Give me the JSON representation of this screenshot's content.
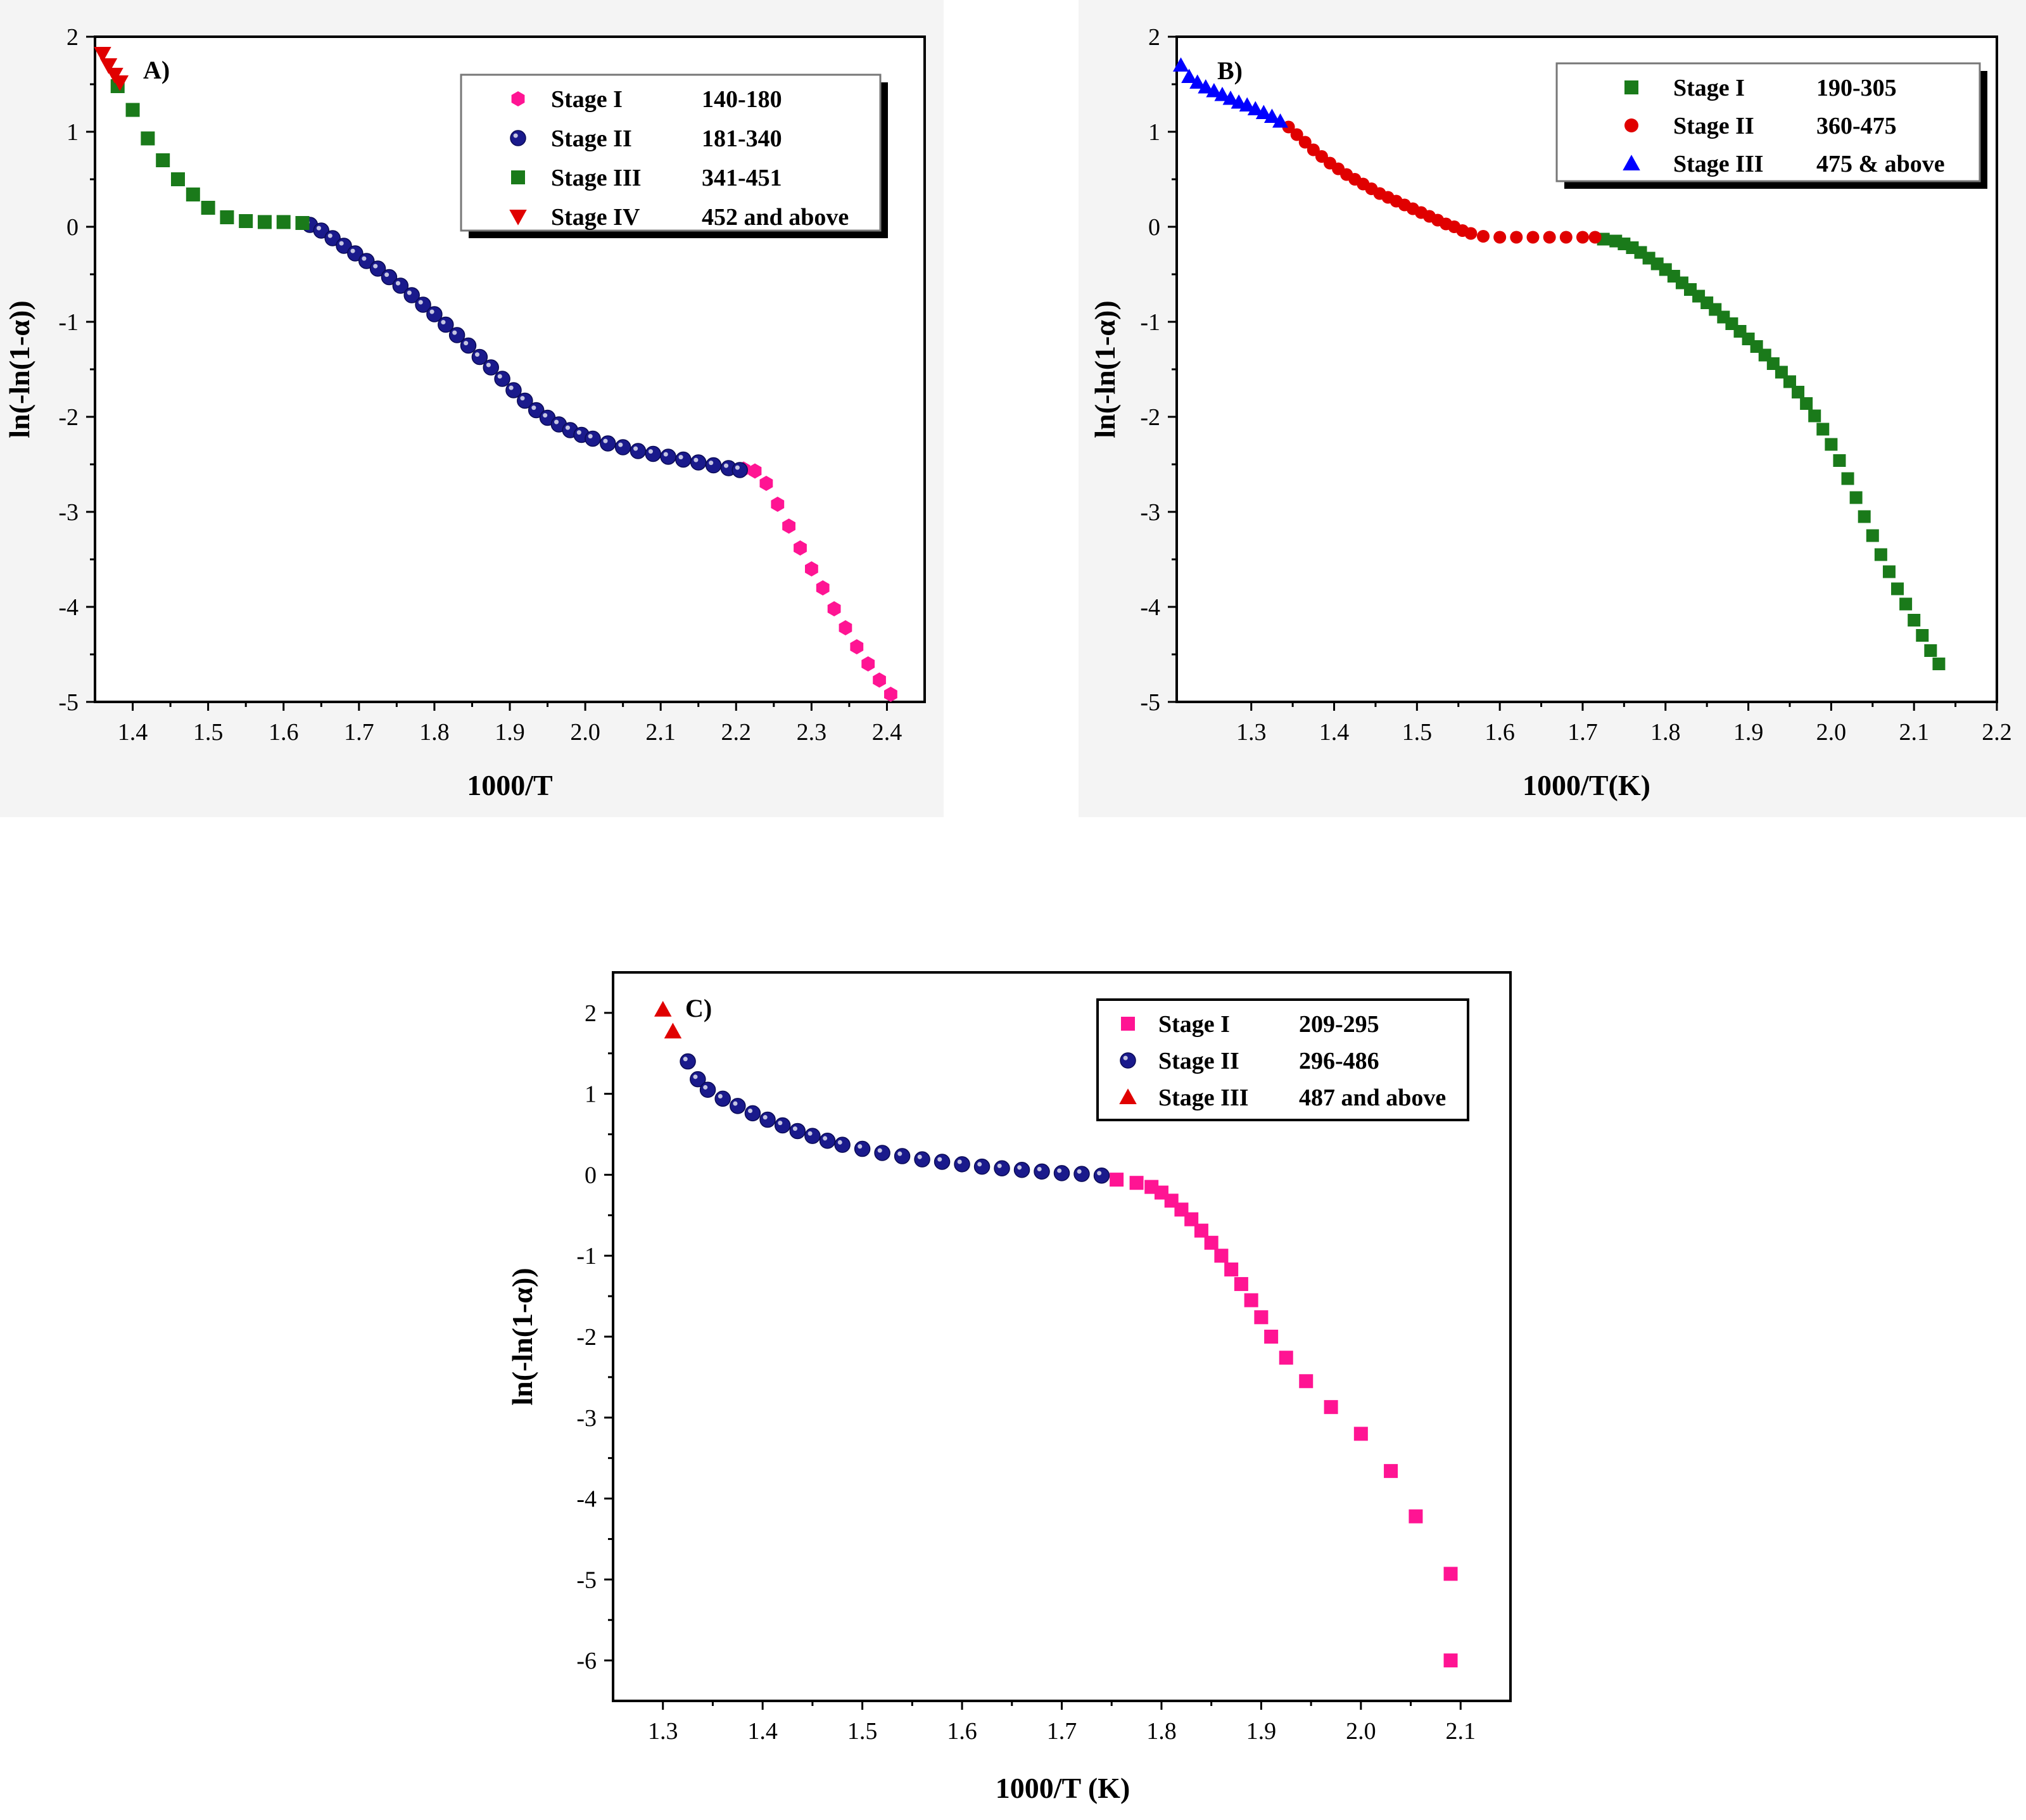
{
  "chart_data": [
    {
      "type": "scatter",
      "panel_label": "A)",
      "xlabel": "1000/T",
      "ylabel": "ln(-ln(1-α))",
      "xlim": [
        1.35,
        2.45
      ],
      "ylim": [
        -5,
        2
      ],
      "xticks": [
        1.4,
        1.5,
        1.6,
        1.7,
        1.8,
        1.9,
        2.0,
        2.1,
        2.2,
        2.3,
        2.4
      ],
      "xtick_labels": [
        "1.4",
        "1.5",
        "1.6",
        "1.7",
        "1.8",
        "1.9",
        "2.0",
        "2.1",
        "2.2",
        "2.3",
        "2.4"
      ],
      "yticks": [
        2,
        1,
        0,
        -1,
        -2,
        -3,
        -4,
        -5
      ],
      "ytick_labels": [
        "2",
        "1",
        "0",
        "-1",
        "-2",
        "-3",
        "-4",
        "-5"
      ],
      "legend": {
        "placement": "top-right",
        "style": "shadow"
      },
      "series": [
        {
          "name": "Stage I",
          "range": "140-180",
          "marker": "hexagon",
          "color": "#ff1493",
          "points": [
            [
              2.21,
              -2.55
            ],
            [
              2.225,
              -2.57
            ],
            [
              2.24,
              -2.7
            ],
            [
              2.255,
              -2.92
            ],
            [
              2.27,
              -3.15
            ],
            [
              2.285,
              -3.38
            ],
            [
              2.3,
              -3.6
            ],
            [
              2.315,
              -3.8
            ],
            [
              2.33,
              -4.02
            ],
            [
              2.345,
              -4.22
            ],
            [
              2.36,
              -4.42
            ],
            [
              2.375,
              -4.6
            ],
            [
              2.39,
              -4.77
            ],
            [
              2.405,
              -4.92
            ]
          ]
        },
        {
          "name": "Stage II",
          "range": "181-340",
          "marker": "sphere",
          "color": "#1a1a8c",
          "points": [
            [
              1.635,
              0.02
            ],
            [
              1.65,
              -0.04
            ],
            [
              1.665,
              -0.12
            ],
            [
              1.68,
              -0.2
            ],
            [
              1.695,
              -0.28
            ],
            [
              1.71,
              -0.36
            ],
            [
              1.725,
              -0.44
            ],
            [
              1.74,
              -0.53
            ],
            [
              1.755,
              -0.62
            ],
            [
              1.77,
              -0.72
            ],
            [
              1.785,
              -0.82
            ],
            [
              1.8,
              -0.92
            ],
            [
              1.815,
              -1.03
            ],
            [
              1.83,
              -1.14
            ],
            [
              1.845,
              -1.25
            ],
            [
              1.86,
              -1.37
            ],
            [
              1.875,
              -1.48
            ],
            [
              1.89,
              -1.6
            ],
            [
              1.905,
              -1.72
            ],
            [
              1.92,
              -1.83
            ],
            [
              1.935,
              -1.93
            ],
            [
              1.95,
              -2.01
            ],
            [
              1.965,
              -2.08
            ],
            [
              1.98,
              -2.14
            ],
            [
              1.995,
              -2.19
            ],
            [
              2.01,
              -2.23
            ],
            [
              2.03,
              -2.28
            ],
            [
              2.05,
              -2.32
            ],
            [
              2.07,
              -2.36
            ],
            [
              2.09,
              -2.39
            ],
            [
              2.11,
              -2.42
            ],
            [
              2.13,
              -2.45
            ],
            [
              2.15,
              -2.48
            ],
            [
              2.17,
              -2.51
            ],
            [
              2.19,
              -2.54
            ],
            [
              2.205,
              -2.56
            ]
          ]
        },
        {
          "name": "Stage III",
          "range": "341-451",
          "marker": "square",
          "color": "#1a7a1a",
          "points": [
            [
              1.38,
              1.48
            ],
            [
              1.4,
              1.23
            ],
            [
              1.42,
              0.93
            ],
            [
              1.44,
              0.7
            ],
            [
              1.46,
              0.5
            ],
            [
              1.48,
              0.34
            ],
            [
              1.5,
              0.2
            ],
            [
              1.525,
              0.1
            ],
            [
              1.55,
              0.06
            ],
            [
              1.575,
              0.05
            ],
            [
              1.6,
              0.05
            ],
            [
              1.625,
              0.04
            ]
          ]
        },
        {
          "name": "Stage IV",
          "range": "452 and above",
          "marker": "triangle-down",
          "color": "#e00000",
          "points": [
            [
              1.36,
              1.82
            ],
            [
              1.368,
              1.7
            ],
            [
              1.376,
              1.6
            ],
            [
              1.383,
              1.52
            ]
          ]
        }
      ]
    },
    {
      "type": "scatter",
      "panel_label": "B)",
      "xlabel": "1000/T(K)",
      "ylabel": "ln(-ln(1-α))",
      "xlim": [
        1.21,
        2.2
      ],
      "ylim": [
        -5,
        2
      ],
      "xticks": [
        1.3,
        1.4,
        1.5,
        1.6,
        1.7,
        1.8,
        1.9,
        2.0,
        2.1,
        2.2
      ],
      "xtick_labels": [
        "1.3",
        "1.4",
        "1.5",
        "1.6",
        "1.7",
        "1.8",
        "1.9",
        "2.0",
        "2.1",
        "2.2"
      ],
      "yticks": [
        2,
        1,
        0,
        -1,
        -2,
        -3,
        -4,
        -5
      ],
      "ytick_labels": [
        "2",
        "1",
        "0",
        "-1",
        "-2",
        "-3",
        "-4",
        "-5"
      ],
      "legend": {
        "placement": "top-right",
        "style": "shadow"
      },
      "series": [
        {
          "name": "Stage I",
          "range": "190-305",
          "marker": "square",
          "color": "#1a7a1a",
          "points": [
            [
              1.725,
              -0.13
            ],
            [
              1.74,
              -0.15
            ],
            [
              1.75,
              -0.18
            ],
            [
              1.76,
              -0.22
            ],
            [
              1.77,
              -0.27
            ],
            [
              1.78,
              -0.33
            ],
            [
              1.79,
              -0.39
            ],
            [
              1.8,
              -0.45
            ],
            [
              1.81,
              -0.52
            ],
            [
              1.82,
              -0.59
            ],
            [
              1.83,
              -0.66
            ],
            [
              1.84,
              -0.73
            ],
            [
              1.85,
              -0.8
            ],
            [
              1.86,
              -0.87
            ],
            [
              1.87,
              -0.95
            ],
            [
              1.88,
              -1.02
            ],
            [
              1.89,
              -1.1
            ],
            [
              1.9,
              -1.18
            ],
            [
              1.91,
              -1.26
            ],
            [
              1.92,
              -1.35
            ],
            [
              1.93,
              -1.44
            ],
            [
              1.94,
              -1.53
            ],
            [
              1.95,
              -1.63
            ],
            [
              1.96,
              -1.74
            ],
            [
              1.97,
              -1.86
            ],
            [
              1.98,
              -1.99
            ],
            [
              1.99,
              -2.13
            ],
            [
              2.0,
              -2.29
            ],
            [
              2.01,
              -2.46
            ],
            [
              2.02,
              -2.65
            ],
            [
              2.03,
              -2.85
            ],
            [
              2.04,
              -3.05
            ],
            [
              2.05,
              -3.25
            ],
            [
              2.06,
              -3.45
            ],
            [
              2.07,
              -3.63
            ],
            [
              2.08,
              -3.81
            ],
            [
              2.09,
              -3.97
            ],
            [
              2.1,
              -4.14
            ],
            [
              2.11,
              -4.3
            ],
            [
              2.12,
              -4.46
            ],
            [
              2.13,
              -4.6
            ]
          ]
        },
        {
          "name": "Stage II",
          "range": "360-475",
          "marker": "circle",
          "color": "#e00000",
          "points": [
            [
              1.345,
              1.05
            ],
            [
              1.355,
              0.97
            ],
            [
              1.365,
              0.89
            ],
            [
              1.375,
              0.81
            ],
            [
              1.385,
              0.74
            ],
            [
              1.395,
              0.67
            ],
            [
              1.405,
              0.61
            ],
            [
              1.415,
              0.55
            ],
            [
              1.425,
              0.5
            ],
            [
              1.435,
              0.45
            ],
            [
              1.445,
              0.4
            ],
            [
              1.455,
              0.35
            ],
            [
              1.465,
              0.31
            ],
            [
              1.475,
              0.27
            ],
            [
              1.485,
              0.23
            ],
            [
              1.495,
              0.19
            ],
            [
              1.505,
              0.15
            ],
            [
              1.515,
              0.11
            ],
            [
              1.525,
              0.07
            ],
            [
              1.535,
              0.03
            ],
            [
              1.545,
              0.0
            ],
            [
              1.555,
              -0.04
            ],
            [
              1.565,
              -0.07
            ],
            [
              1.58,
              -0.1
            ],
            [
              1.6,
              -0.11
            ],
            [
              1.62,
              -0.11
            ],
            [
              1.64,
              -0.11
            ],
            [
              1.66,
              -0.11
            ],
            [
              1.68,
              -0.11
            ],
            [
              1.7,
              -0.11
            ],
            [
              1.715,
              -0.11
            ]
          ]
        },
        {
          "name": "Stage III",
          "range": "475 & above",
          "marker": "triangle",
          "color": "#0000ff",
          "points": [
            [
              1.215,
              1.7
            ],
            [
              1.225,
              1.58
            ],
            [
              1.235,
              1.52
            ],
            [
              1.245,
              1.47
            ],
            [
              1.255,
              1.43
            ],
            [
              1.265,
              1.39
            ],
            [
              1.275,
              1.35
            ],
            [
              1.285,
              1.31
            ],
            [
              1.295,
              1.28
            ],
            [
              1.305,
              1.24
            ],
            [
              1.315,
              1.2
            ],
            [
              1.325,
              1.16
            ],
            [
              1.335,
              1.11
            ]
          ]
        }
      ]
    },
    {
      "type": "scatter",
      "panel_label": "C)",
      "xlabel": "1000/T (K)",
      "ylabel": "ln(-ln(1-α))",
      "xlim": [
        1.25,
        2.15
      ],
      "ylim": [
        -6.5,
        2.5
      ],
      "xticks": [
        1.3,
        1.4,
        1.5,
        1.6,
        1.7,
        1.8,
        1.9,
        2.0,
        2.1
      ],
      "xtick_labels": [
        "1.3",
        "1.4",
        "1.5",
        "1.6",
        "1.7",
        "1.8",
        "1.9",
        "2.0",
        "2.1"
      ],
      "yticks": [
        2,
        1,
        0,
        -1,
        -2,
        -3,
        -4,
        -5,
        -6
      ],
      "ytick_labels": [
        "2",
        "1",
        "0",
        "-1",
        "-2",
        "-3",
        "-4",
        "-5",
        "-6"
      ],
      "legend": {
        "placement": "top-right",
        "style": "plain"
      },
      "series": [
        {
          "name": "Stage I",
          "range": "209-295",
          "marker": "square",
          "color": "#ff1493",
          "points": [
            [
              1.755,
              -0.06
            ],
            [
              1.775,
              -0.1
            ],
            [
              1.79,
              -0.15
            ],
            [
              1.8,
              -0.22
            ],
            [
              1.81,
              -0.32
            ],
            [
              1.82,
              -0.43
            ],
            [
              1.83,
              -0.55
            ],
            [
              1.84,
              -0.69
            ],
            [
              1.85,
              -0.84
            ],
            [
              1.86,
              -1.0
            ],
            [
              1.87,
              -1.17
            ],
            [
              1.88,
              -1.35
            ],
            [
              1.89,
              -1.55
            ],
            [
              1.9,
              -1.76
            ],
            [
              1.91,
              -2.0
            ],
            [
              1.925,
              -2.26
            ],
            [
              1.945,
              -2.55
            ],
            [
              1.97,
              -2.87
            ],
            [
              2.0,
              -3.2
            ],
            [
              2.03,
              -3.66
            ],
            [
              2.055,
              -4.22
            ],
            [
              2.09,
              -4.93
            ],
            [
              2.09,
              -6.0
            ]
          ]
        },
        {
          "name": "Stage II",
          "range": "296-486",
          "marker": "sphere",
          "color": "#1a1a8c",
          "points": [
            [
              1.325,
              1.4
            ],
            [
              1.335,
              1.18
            ],
            [
              1.345,
              1.05
            ],
            [
              1.36,
              0.94
            ],
            [
              1.375,
              0.85
            ],
            [
              1.39,
              0.76
            ],
            [
              1.405,
              0.68
            ],
            [
              1.42,
              0.61
            ],
            [
              1.435,
              0.54
            ],
            [
              1.45,
              0.48
            ],
            [
              1.465,
              0.42
            ],
            [
              1.48,
              0.37
            ],
            [
              1.5,
              0.32
            ],
            [
              1.52,
              0.27
            ],
            [
              1.54,
              0.23
            ],
            [
              1.56,
              0.19
            ],
            [
              1.58,
              0.16
            ],
            [
              1.6,
              0.13
            ],
            [
              1.62,
              0.1
            ],
            [
              1.64,
              0.08
            ],
            [
              1.66,
              0.06
            ],
            [
              1.68,
              0.04
            ],
            [
              1.7,
              0.02
            ],
            [
              1.72,
              0.01
            ],
            [
              1.74,
              -0.01
            ]
          ]
        },
        {
          "name": "Stage III",
          "range": "487 and above",
          "marker": "triangle",
          "color": "#e00000",
          "points": [
            [
              1.3,
              2.04
            ],
            [
              1.31,
              1.77
            ]
          ]
        }
      ]
    }
  ]
}
